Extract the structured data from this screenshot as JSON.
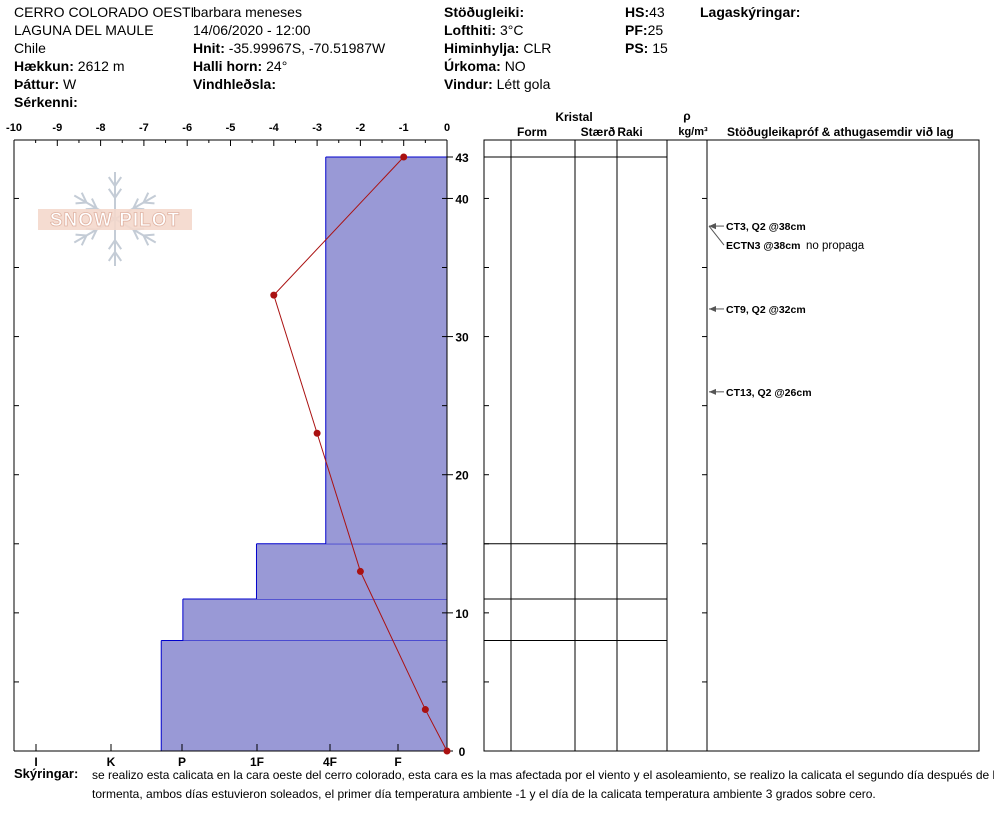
{
  "header": {
    "col1": {
      "location1": "CERRO COLORADO OESTE",
      "location2": "LAGUNA DEL MAULE",
      "country": "Chile",
      "elevation_label": "Hækkun:",
      "elevation_value": "2612 m",
      "aspect_label": "Þáttur:",
      "aspect_value": "W",
      "specifics_label": "Sérkenni:"
    },
    "col2": {
      "observer": "barbara meneses",
      "datetime": "14/06/2020 - 12:00",
      "coords_label": "Hnit:",
      "coords_value": "-35.99967S, -70.51987W",
      "slope_label": "Halli horn:",
      "slope_value": "24°",
      "wind_loading_label": "Vindhleðsla:"
    },
    "col3": {
      "stability_label": "Stöðugleiki:",
      "air_temp_label": "Lofthiti:",
      "air_temp_value": "3°C",
      "sky_label": "Himinhylja:",
      "sky_value": "CLR",
      "precip_label": "Úrkoma:",
      "precip_value": "NO",
      "wind_label": "Vindur:",
      "wind_value": "Létt gola"
    },
    "col4": {
      "hs_label": "HS:",
      "hs_value": "43",
      "pf_label": "PF:",
      "pf_value": "25",
      "ps_label": "PS:",
      "ps_value": "15"
    },
    "layer_notes_label": "Lagaskýringar:"
  },
  "logo": {
    "text": "SNOW PILOT",
    "icon": "snowflake-icon"
  },
  "table_headers": {
    "crystal": "Kristal",
    "form": "Form",
    "size": "Stærð",
    "moisture": "Raki",
    "rho": "ρ",
    "density_unit": "kg/m³",
    "stability_tests": "Stöðugleikapróf & athugasemdir við lag"
  },
  "stability_tests": [
    {
      "text": "CT3, Q2 @38cm",
      "depth": 38
    },
    {
      "text": "ECTN3 @38cm",
      "extra": "no propaga",
      "depth": 38
    },
    {
      "text": "CT9, Q2 @32cm",
      "depth": 32
    },
    {
      "text": "CT13, Q2 @26cm",
      "depth": 26
    }
  ],
  "comments": {
    "label": "Skýringar:",
    "line1": "se realizo esta calicata en la cara oeste del cerro colorado, esta cara es la mas afectada por el viento y el asoleamiento, se realizo la calicata el segundo día después de la",
    "line2": "tormenta, ambos días estuvieron soleados, el primer día temperatura ambiente -1 y el día de la calicata temperatura ambiente 3 grados sobre cero."
  },
  "colors": {
    "hardness_fill": "#9999d6",
    "layer_line": "#0000cc",
    "temp_line": "#aa1111"
  },
  "chart_data": {
    "type": "area",
    "temperature_axis": {
      "ticks": [
        -10,
        -9,
        -8,
        -7,
        -6,
        -5,
        -4,
        -3,
        -2,
        -1,
        0
      ],
      "range": [
        -10,
        0
      ]
    },
    "hardness_axis": {
      "labels": [
        "I",
        "K",
        "P",
        "1F",
        "4F",
        "F"
      ]
    },
    "depth_axis": {
      "range": [
        0,
        43
      ],
      "major_ticks": [
        0,
        10,
        20,
        30,
        40,
        43
      ]
    },
    "hardness_layers": [
      {
        "bottom": 0,
        "top": 8,
        "hardness_extent": 6.6
      },
      {
        "bottom": 8,
        "top": 11,
        "hardness_extent": 6.1
      },
      {
        "bottom": 11,
        "top": 15,
        "hardness_extent": 4.4
      },
      {
        "bottom": 15,
        "top": 43,
        "hardness_extent": 2.8
      }
    ],
    "temperature_profile": [
      {
        "depth": 43,
        "temp": -1.0
      },
      {
        "depth": 33,
        "temp": -4.0
      },
      {
        "depth": 23,
        "temp": -3.0
      },
      {
        "depth": 13,
        "temp": -2.0
      },
      {
        "depth": 3,
        "temp": -0.5
      },
      {
        "depth": 0,
        "temp": 0.0
      }
    ]
  }
}
